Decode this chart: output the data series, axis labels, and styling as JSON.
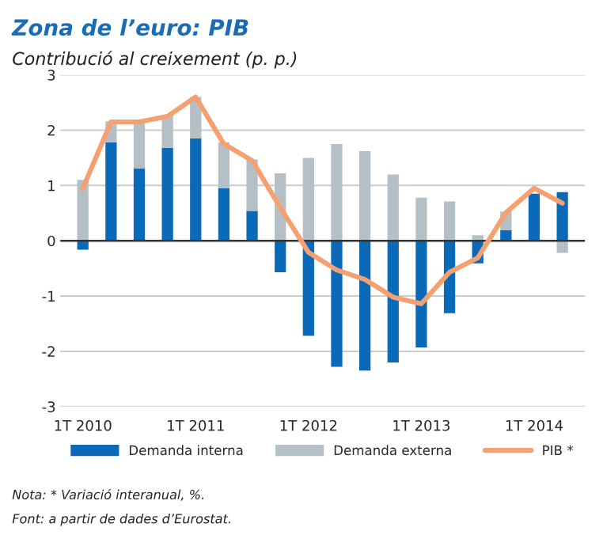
{
  "chart_data": {
    "type": "bar",
    "title": "Zona de l’euro: PIB",
    "subtitle": "Contribució al creixement (p. p.)",
    "categories": [
      "1T 2010",
      null,
      null,
      null,
      "1T 2011",
      null,
      null,
      null,
      "1T 2012",
      null,
      null,
      null,
      "1T 2013",
      null,
      null,
      null,
      "1T 2014",
      null
    ],
    "stacked": true,
    "series": [
      {
        "name": "Demanda interna",
        "color": "#0a6ab8",
        "values": [
          -0.16,
          1.78,
          1.31,
          1.68,
          1.85,
          0.95,
          0.54,
          -0.57,
          -1.72,
          -2.28,
          -2.35,
          -2.2,
          -1.93,
          -1.31,
          -0.41,
          0.19,
          0.85,
          0.88
        ]
      },
      {
        "name": "Demanda externa",
        "color": "#b4c0c6",
        "values": [
          1.1,
          0.38,
          0.84,
          0.6,
          0.75,
          0.83,
          0.93,
          1.22,
          1.5,
          1.75,
          1.62,
          1.2,
          0.78,
          0.71,
          0.1,
          0.34,
          null,
          -0.22
        ]
      },
      {
        "name": "PIB *",
        "type": "line",
        "color": "#f4a070",
        "values": [
          0.95,
          2.15,
          2.15,
          2.25,
          2.6,
          1.75,
          1.45,
          0.6,
          -0.21,
          -0.53,
          -0.7,
          -1.02,
          -1.14,
          -0.57,
          -0.31,
          0.51,
          0.95,
          0.68
        ]
      }
    ],
    "ylim": [
      -3,
      3
    ],
    "yticks": [
      -3,
      -2,
      -1,
      0,
      1,
      2,
      3
    ],
    "grid": "y",
    "legend": "bottom",
    "ref_lines": [
      {
        "axis": "y",
        "value": 0,
        "color": "#333333"
      }
    ],
    "annotations": [
      "Nota: * Variació interanual, %.",
      "Font: a partir de dades d’Eurostat."
    ]
  }
}
